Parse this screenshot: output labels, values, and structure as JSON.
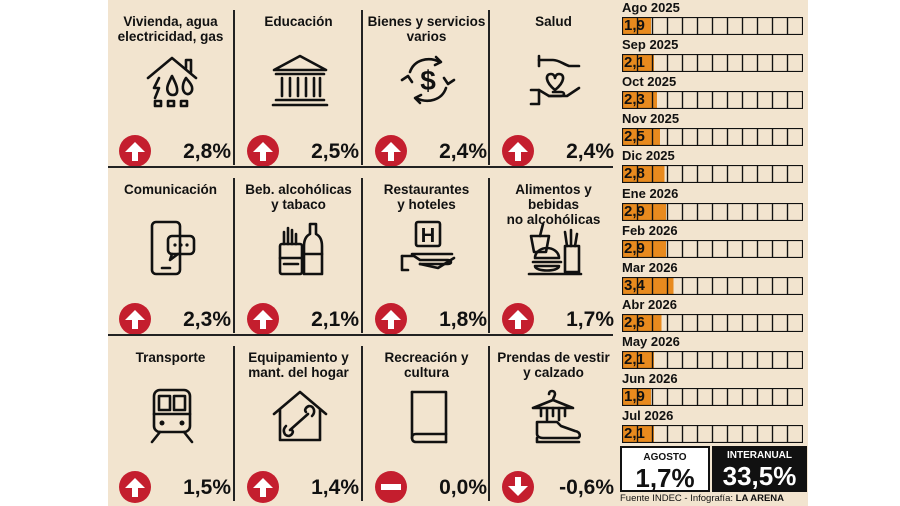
{
  "categories_grid": [
    {
      "title": "Vivienda, agua\nelectricidad, gas",
      "value": "2,8%",
      "trend": "up",
      "icon": "house-utilities-icon"
    },
    {
      "title": "Educación",
      "value": "2,5%",
      "trend": "up",
      "icon": "school-building-icon"
    },
    {
      "title": "Bienes y servicios\nvarios",
      "value": "2,4%",
      "trend": "up",
      "icon": "dollar-cycle-icon"
    },
    {
      "title": "Salud",
      "value": "2,4%",
      "trend": "up",
      "icon": "hands-heart-icon"
    },
    {
      "title": "Comunicación",
      "value": "2,3%",
      "trend": "up",
      "icon": "phone-chat-icon"
    },
    {
      "title": "Beb. alcohólicas\ny tabaco",
      "value": "2,1%",
      "trend": "up",
      "icon": "bottle-cigarettes-icon"
    },
    {
      "title": "Restaurantes\ny hoteles",
      "value": "1,8%",
      "trend": "up",
      "icon": "hotel-tray-icon"
    },
    {
      "title": "Alimentos y bebidas\nno alcohólicas",
      "value": "1,7%",
      "trend": "up",
      "icon": "fast-food-icon"
    },
    {
      "title": "Transporte",
      "value": "1,5%",
      "trend": "up",
      "icon": "train-icon"
    },
    {
      "title": "Equipamiento y\nmant. del hogar",
      "value": "1,4%",
      "trend": "up",
      "icon": "house-wrench-icon"
    },
    {
      "title": "Recreación y\ncultura",
      "value": "0,0%",
      "trend": "flat",
      "icon": "book-icon"
    },
    {
      "title": "Prendas de vestir\ny calzado",
      "value": "-0,6%",
      "trend": "down",
      "icon": "clothes-shoe-icon"
    }
  ],
  "chart_data": {
    "type": "bar",
    "categories": [
      "Ago 2025",
      "Sep 2025",
      "Oct 2025",
      "Nov 2025",
      "Dic 2025",
      "Ene 2026",
      "Feb 2026",
      "Mar 2026",
      "Abr 2026",
      "May 2026",
      "Jun 2026",
      "Jul 2026"
    ],
    "labels": [
      "1,9",
      "2,1",
      "2,3",
      "2,5",
      "2,8",
      "2,9",
      "2,9",
      "3,4",
      "2,6",
      "2,1",
      "1,9",
      "2,1"
    ],
    "values": [
      1.9,
      2.1,
      2.3,
      2.5,
      2.8,
      2.9,
      2.9,
      3.4,
      2.6,
      2.1,
      1.9,
      2.1
    ],
    "xlim": [
      0,
      12
    ],
    "bar_color": "#e88a1e",
    "grid": true
  },
  "summary": {
    "month_label": "AGOSTO",
    "month_value": "1,7%",
    "annual_label": "INTERANUAL",
    "annual_value": "33,5%"
  },
  "source": {
    "text": "Fuente INDEC - Infografía:",
    "brand": "LA ARENA"
  },
  "colors": {
    "background": "#f2e4cf",
    "arrow": "#c41e2e",
    "bar": "#e88a1e"
  }
}
